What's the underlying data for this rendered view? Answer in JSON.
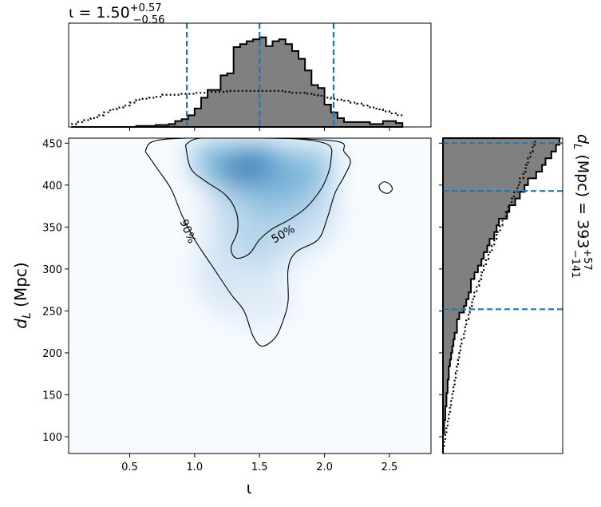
{
  "chart_data": [
    {
      "type": "heatmap",
      "name": "joint",
      "xlabel_parts": {
        "main": "ι",
        "sub": ""
      },
      "ylabel_parts": {
        "main": "d",
        "sub": "L",
        "rest": " (Mpc)"
      },
      "xlim": [
        0.03,
        2.82
      ],
      "ylim": [
        80,
        456
      ],
      "x_ticks": [
        0.5,
        1.0,
        1.5,
        2.0,
        2.5
      ],
      "x_tick_labels": [
        "0.5",
        "1.0",
        "1.5",
        "2.0",
        "2.5"
      ],
      "y_ticks": [
        100,
        150,
        200,
        250,
        300,
        350,
        400,
        450
      ],
      "y_tick_labels": [
        "100",
        "150",
        "200",
        "250",
        "300",
        "350",
        "400",
        "450"
      ],
      "colormap": "Blues",
      "density_peak": {
        "x": 1.4,
        "y": 420
      },
      "contours": [
        {
          "label": "90%",
          "label_pos": {
            "x": 0.95,
            "y": 345
          },
          "rings": [
            [
              [
                0.62,
                440
              ],
              [
                0.68,
                452
              ],
              [
                0.95,
                456
              ],
              [
                1.6,
                456
              ],
              [
                2.1,
                452
              ],
              [
                2.15,
                440
              ],
              [
                2.2,
                428
              ],
              [
                2.15,
                410
              ],
              [
                2.08,
                390
              ],
              [
                2.02,
                360
              ],
              [
                1.95,
                335
              ],
              [
                1.78,
                320
              ],
              [
                1.72,
                300
              ],
              [
                1.72,
                262
              ],
              [
                1.68,
                238
              ],
              [
                1.62,
                218
              ],
              [
                1.52,
                208
              ],
              [
                1.45,
                220
              ],
              [
                1.38,
                250
              ],
              [
                1.28,
                270
              ],
              [
                1.15,
                300
              ],
              [
                1.0,
                335
              ],
              [
                0.9,
                365
              ],
              [
                0.82,
                395
              ],
              [
                0.72,
                418
              ],
              [
                0.62,
                440
              ]
            ],
            [
              [
                2.42,
                400
              ],
              [
                2.46,
                404
              ],
              [
                2.51,
                400
              ],
              [
                2.52,
                394
              ],
              [
                2.48,
                390
              ],
              [
                2.43,
                394
              ],
              [
                2.42,
                400
              ]
            ]
          ]
        },
        {
          "label": "50%",
          "label_pos": {
            "x": 1.68,
            "y": 342
          },
          "rings": [
            [
              [
                0.93,
                448
              ],
              [
                1.05,
                456
              ],
              [
                1.5,
                456
              ],
              [
                1.8,
                455
              ],
              [
                2.03,
                448
              ],
              [
                2.05,
                430
              ],
              [
                2.02,
                410
              ],
              [
                1.96,
                392
              ],
              [
                1.85,
                372
              ],
              [
                1.72,
                358
              ],
              [
                1.6,
                348
              ],
              [
                1.5,
                335
              ],
              [
                1.42,
                318
              ],
              [
                1.32,
                313
              ],
              [
                1.28,
                325
              ],
              [
                1.33,
                345
              ],
              [
                1.32,
                368
              ],
              [
                1.24,
                388
              ],
              [
                1.08,
                405
              ],
              [
                0.97,
                420
              ],
              [
                0.93,
                448
              ]
            ]
          ]
        }
      ]
    },
    {
      "type": "bar",
      "name": "iota-marginal",
      "title_main": "ι = 1.50",
      "title_sup": "+0.57",
      "title_sub": "−0.56",
      "xlim": [
        0.03,
        2.82
      ],
      "ylim": [
        0,
        1.0
      ],
      "bin_edges": [
        0.05,
        2.6
      ],
      "counts": [
        0.0,
        0.0,
        0.0,
        0.0,
        0.0,
        0.0,
        0.0,
        0.0,
        0.0,
        0.0,
        0.01,
        0.01,
        0.01,
        0.02,
        0.02,
        0.03,
        0.06,
        0.08,
        0.12,
        0.19,
        0.3,
        0.38,
        0.38,
        0.53,
        0.55,
        0.82,
        0.85,
        0.88,
        0.9,
        0.92,
        0.83,
        0.88,
        0.9,
        0.85,
        0.78,
        0.7,
        0.58,
        0.43,
        0.4,
        0.23,
        0.15,
        0.09,
        0.05,
        0.05,
        0.05,
        0.05,
        0.03,
        0.03,
        0.06,
        0.06,
        0.04
      ],
      "prior": [
        0.03,
        0.05,
        0.07,
        0.09,
        0.12,
        0.15,
        0.18,
        0.2,
        0.22,
        0.25,
        0.28,
        0.29,
        0.3,
        0.31,
        0.33,
        0.33,
        0.33,
        0.34,
        0.34,
        0.35,
        0.35,
        0.36,
        0.36,
        0.36,
        0.37,
        0.37,
        0.37,
        0.37,
        0.37,
        0.37,
        0.37,
        0.37,
        0.37,
        0.36,
        0.35,
        0.35,
        0.34,
        0.33,
        0.32,
        0.3,
        0.29,
        0.28,
        0.27,
        0.25,
        0.24,
        0.22,
        0.2,
        0.18,
        0.16,
        0.14,
        0.12
      ],
      "median": 1.5,
      "interval": [
        0.94,
        2.07
      ]
    },
    {
      "type": "bar",
      "name": "dl-marginal",
      "orientation": "horizontal",
      "side_label_main": "d",
      "side_label_sub": "L",
      "side_label_rest": " (Mpc) = 393",
      "side_label_sup": "+57",
      "side_label_sub2": "−141",
      "ylim": [
        80,
        456
      ],
      "xlim": [
        0,
        1.0
      ],
      "bin_edges": [
        80,
        456
      ],
      "counts": [
        0.0,
        0.0,
        0.0,
        0.01,
        0.01,
        0.02,
        0.02,
        0.03,
        0.03,
        0.04,
        0.04,
        0.05,
        0.05,
        0.06,
        0.07,
        0.08,
        0.09,
        0.1,
        0.12,
        0.12,
        0.14,
        0.18,
        0.2,
        0.22,
        0.24,
        0.24,
        0.27,
        0.3,
        0.33,
        0.35,
        0.38,
        0.4,
        0.44,
        0.46,
        0.48,
        0.55,
        0.57,
        0.62,
        0.66,
        0.7,
        0.73,
        0.8,
        0.85,
        0.88,
        0.93,
        0.97,
        1.0
      ],
      "prior": [
        0.0,
        0.01,
        0.02,
        0.03,
        0.04,
        0.05,
        0.06,
        0.07,
        0.08,
        0.09,
        0.1,
        0.11,
        0.12,
        0.13,
        0.14,
        0.15,
        0.16,
        0.18,
        0.19,
        0.2,
        0.22,
        0.23,
        0.25,
        0.27,
        0.29,
        0.31,
        0.33,
        0.35,
        0.37,
        0.39,
        0.42,
        0.44,
        0.46,
        0.49,
        0.51,
        0.54,
        0.56,
        0.59,
        0.61,
        0.64,
        0.66,
        0.69,
        0.71,
        0.73,
        0.75,
        0.77,
        0.79
      ],
      "median": 393,
      "interval": [
        252,
        450
      ]
    }
  ],
  "colors": {
    "hist_fill": "#808080",
    "hist_edge": "#000000",
    "median_line": "#1f77b4",
    "cmap_low": "#f7fbff",
    "cmap_high": "#08306b"
  }
}
